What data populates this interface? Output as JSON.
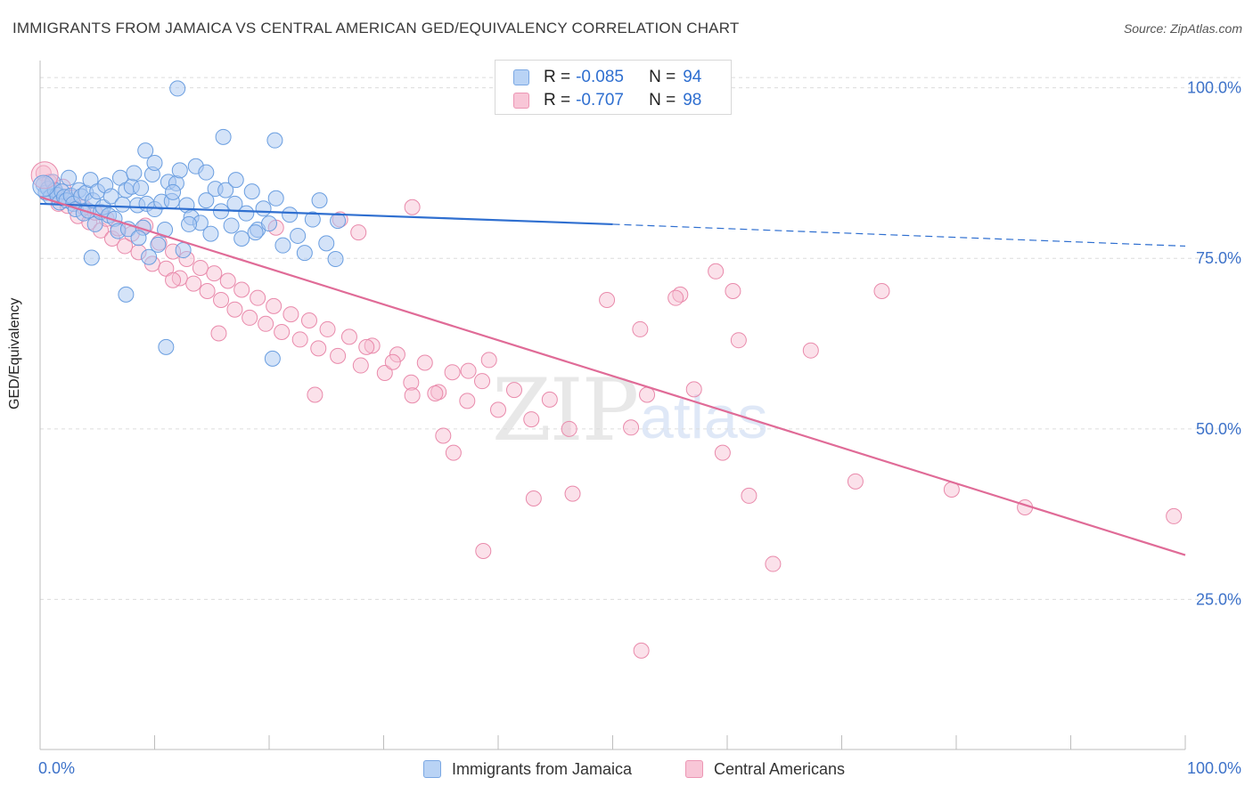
{
  "header": {
    "title": "IMMIGRANTS FROM JAMAICA VS CENTRAL AMERICAN GED/EQUIVALENCY CORRELATION CHART",
    "source": "Source: ZipAtlas.com"
  },
  "watermark": {
    "zip": "ZIP",
    "atlas": "atlas"
  },
  "legend": {
    "r_label": "R =",
    "n_label": "N =",
    "series": [
      {
        "r": "-0.085",
        "n": "94"
      },
      {
        "r": "-0.707",
        "n": "98"
      }
    ]
  },
  "colors": {
    "blue_fill": "#a9c8f2",
    "blue_stroke": "#6a9ee0",
    "blue_line": "#2f6fd0",
    "pink_fill": "#f6bcd0",
    "pink_stroke": "#e98aab",
    "pink_line": "#e06b97",
    "axis_text": "#3d72c9"
  },
  "chart_data": {
    "type": "scatter",
    "title": "IMMIGRANTS FROM JAMAICA VS CENTRAL AMERICAN GED/EQUIVALENCY CORRELATION CHART",
    "xlabel": "",
    "ylabel": "GED/Equivalency",
    "xlim": [
      0,
      100
    ],
    "ylim": [
      3,
      104
    ],
    "x_tick_labels": [
      "0.0%",
      "100.0%"
    ],
    "y_ticks": [
      100,
      75,
      50,
      25
    ],
    "y_tick_labels": [
      "100.0%",
      "75.0%",
      "50.0%",
      "25.0%"
    ],
    "legend_position": "top-center",
    "series": [
      {
        "name": "Immigrants from Jamaica",
        "r": -0.085,
        "n": 94,
        "trend": {
          "x0": 0,
          "y0": 83.0,
          "x1": 50,
          "y1": 80.0,
          "dash_to_x": 100,
          "dash_to_y": 76.8
        },
        "points": [
          [
            0.3,
            85.8
          ],
          [
            0.5,
            84.6
          ],
          [
            0.7,
            85.2
          ],
          [
            0.9,
            84.0
          ],
          [
            1.1,
            86.2
          ],
          [
            1.3,
            85.0
          ],
          [
            1.5,
            84.3
          ],
          [
            1.7,
            83.2
          ],
          [
            1.9,
            84.8
          ],
          [
            2.1,
            84.0
          ],
          [
            2.3,
            83.5
          ],
          [
            2.5,
            86.8
          ],
          [
            2.7,
            84.2
          ],
          [
            2.9,
            83.0
          ],
          [
            3.1,
            82.2
          ],
          [
            3.4,
            85.0
          ],
          [
            3.6,
            84.1
          ],
          [
            3.8,
            81.6
          ],
          [
            4.0,
            84.6
          ],
          [
            4.2,
            82.0
          ],
          [
            4.4,
            86.5
          ],
          [
            4.6,
            83.5
          ],
          [
            4.8,
            80.0
          ],
          [
            5.0,
            84.8
          ],
          [
            5.3,
            81.8
          ],
          [
            5.5,
            82.5
          ],
          [
            5.7,
            85.7
          ],
          [
            6.0,
            81.3
          ],
          [
            6.2,
            84.1
          ],
          [
            6.5,
            80.8
          ],
          [
            6.8,
            79.0
          ],
          [
            7.0,
            86.8
          ],
          [
            7.2,
            82.9
          ],
          [
            7.5,
            85.0
          ],
          [
            7.7,
            79.3
          ],
          [
            8.0,
            85.5
          ],
          [
            8.2,
            87.5
          ],
          [
            8.5,
            82.8
          ],
          [
            8.8,
            85.3
          ],
          [
            9.0,
            79.5
          ],
          [
            9.3,
            83.0
          ],
          [
            9.5,
            75.2
          ],
          [
            9.8,
            87.3
          ],
          [
            10.0,
            82.2
          ],
          [
            10.3,
            77.0
          ],
          [
            10.6,
            83.3
          ],
          [
            10.9,
            79.2
          ],
          [
            11.2,
            86.2
          ],
          [
            11.5,
            83.4
          ],
          [
            11.9,
            86.0
          ],
          [
            12.2,
            87.9
          ],
          [
            12.5,
            76.2
          ],
          [
            12.8,
            82.8
          ],
          [
            13.2,
            81.0
          ],
          [
            13.6,
            88.5
          ],
          [
            14.0,
            80.2
          ],
          [
            14.5,
            87.6
          ],
          [
            14.9,
            78.6
          ],
          [
            15.3,
            85.2
          ],
          [
            15.8,
            81.9
          ],
          [
            16.2,
            85.0
          ],
          [
            16.7,
            79.8
          ],
          [
            17.1,
            86.5
          ],
          [
            17.6,
            77.9
          ],
          [
            18.0,
            81.6
          ],
          [
            18.5,
            84.8
          ],
          [
            19.0,
            79.2
          ],
          [
            19.5,
            82.3
          ],
          [
            20.0,
            80.1
          ],
          [
            20.6,
            83.8
          ],
          [
            21.2,
            76.9
          ],
          [
            21.8,
            81.4
          ],
          [
            22.5,
            78.3
          ],
          [
            23.1,
            75.8
          ],
          [
            23.8,
            80.7
          ],
          [
            24.4,
            83.5
          ],
          [
            25.0,
            77.2
          ],
          [
            9.2,
            90.8
          ],
          [
            12.0,
            99.9
          ],
          [
            16.0,
            92.8
          ],
          [
            20.5,
            92.3
          ],
          [
            11.0,
            62.0
          ],
          [
            20.3,
            60.3
          ],
          [
            7.5,
            69.7
          ],
          [
            4.5,
            75.1
          ],
          [
            14.5,
            83.5
          ],
          [
            10.0,
            89.0
          ],
          [
            17.0,
            83.0
          ],
          [
            13.0,
            80.0
          ],
          [
            8.6,
            78.0
          ],
          [
            26.0,
            80.5
          ],
          [
            25.8,
            74.9
          ],
          [
            18.8,
            78.8
          ],
          [
            11.6,
            84.7
          ]
        ]
      },
      {
        "name": "Central Americans",
        "r": -0.707,
        "n": 98,
        "trend": {
          "x0": 0,
          "y0": 84.0,
          "x1": 100,
          "y1": 31.5
        },
        "points": [
          [
            0.3,
            87.5
          ],
          [
            0.8,
            86.2
          ],
          [
            1.2,
            84.8
          ],
          [
            1.6,
            83.0
          ],
          [
            2.0,
            85.5
          ],
          [
            2.4,
            82.7
          ],
          [
            2.8,
            83.9
          ],
          [
            3.3,
            81.2
          ],
          [
            3.8,
            82.5
          ],
          [
            4.3,
            80.3
          ],
          [
            4.8,
            81.7
          ],
          [
            5.3,
            79.1
          ],
          [
            5.8,
            80.8
          ],
          [
            6.3,
            77.9
          ],
          [
            6.8,
            79.4
          ],
          [
            7.4,
            76.8
          ],
          [
            8.0,
            78.6
          ],
          [
            8.6,
            75.9
          ],
          [
            9.2,
            79.8
          ],
          [
            9.8,
            74.2
          ],
          [
            10.4,
            77.3
          ],
          [
            11.0,
            73.5
          ],
          [
            11.6,
            76.0
          ],
          [
            12.2,
            72.1
          ],
          [
            12.8,
            74.9
          ],
          [
            13.4,
            71.3
          ],
          [
            14.0,
            73.6
          ],
          [
            14.6,
            70.2
          ],
          [
            15.2,
            72.8
          ],
          [
            15.8,
            68.9
          ],
          [
            16.4,
            71.7
          ],
          [
            17.0,
            67.5
          ],
          [
            17.6,
            70.4
          ],
          [
            18.3,
            66.3
          ],
          [
            19.0,
            69.2
          ],
          [
            19.7,
            65.4
          ],
          [
            20.4,
            68.0
          ],
          [
            21.1,
            64.2
          ],
          [
            21.9,
            66.8
          ],
          [
            22.7,
            63.1
          ],
          [
            23.5,
            65.9
          ],
          [
            24.3,
            61.8
          ],
          [
            25.1,
            64.6
          ],
          [
            26.0,
            60.7
          ],
          [
            27.0,
            63.5
          ],
          [
            28.0,
            59.3
          ],
          [
            29.0,
            62.2
          ],
          [
            30.1,
            58.2
          ],
          [
            31.2,
            60.9
          ],
          [
            32.4,
            56.8
          ],
          [
            33.6,
            59.7
          ],
          [
            34.8,
            55.4
          ],
          [
            36.0,
            58.3
          ],
          [
            37.3,
            54.1
          ],
          [
            38.6,
            57.0
          ],
          [
            40.0,
            52.8
          ],
          [
            41.4,
            55.7
          ],
          [
            42.9,
            51.4
          ],
          [
            44.5,
            54.3
          ],
          [
            46.2,
            50.0
          ],
          [
            15.6,
            64.0
          ],
          [
            11.6,
            71.8
          ],
          [
            20.6,
            79.5
          ],
          [
            26.2,
            80.7
          ],
          [
            27.8,
            78.8
          ],
          [
            32.5,
            82.5
          ],
          [
            28.5,
            62.0
          ],
          [
            30.8,
            59.8
          ],
          [
            24.0,
            55.0
          ],
          [
            34.5,
            55.2
          ],
          [
            37.4,
            58.5
          ],
          [
            39.2,
            60.1
          ],
          [
            32.5,
            54.9
          ],
          [
            35.2,
            49.0
          ],
          [
            36.1,
            46.5
          ],
          [
            51.6,
            50.2
          ],
          [
            53.0,
            55.0
          ],
          [
            59.6,
            46.5
          ],
          [
            71.2,
            42.3
          ],
          [
            79.6,
            41.1
          ],
          [
            38.7,
            32.1
          ],
          [
            55.9,
            69.7
          ],
          [
            61.0,
            63.0
          ],
          [
            64.0,
            30.2
          ],
          [
            61.9,
            40.2
          ],
          [
            46.5,
            40.5
          ],
          [
            49.5,
            68.9
          ],
          [
            52.4,
            64.6
          ],
          [
            57.1,
            55.8
          ],
          [
            55.5,
            69.2
          ],
          [
            59.0,
            73.1
          ],
          [
            60.5,
            70.2
          ],
          [
            67.3,
            61.5
          ],
          [
            73.5,
            70.2
          ],
          [
            86.0,
            38.5
          ],
          [
            99.0,
            37.2
          ],
          [
            52.5,
            17.5
          ],
          [
            43.1,
            39.8
          ]
        ]
      }
    ]
  },
  "bottom_legend": {
    "items": [
      "Immigrants from Jamaica",
      "Central Americans"
    ]
  }
}
